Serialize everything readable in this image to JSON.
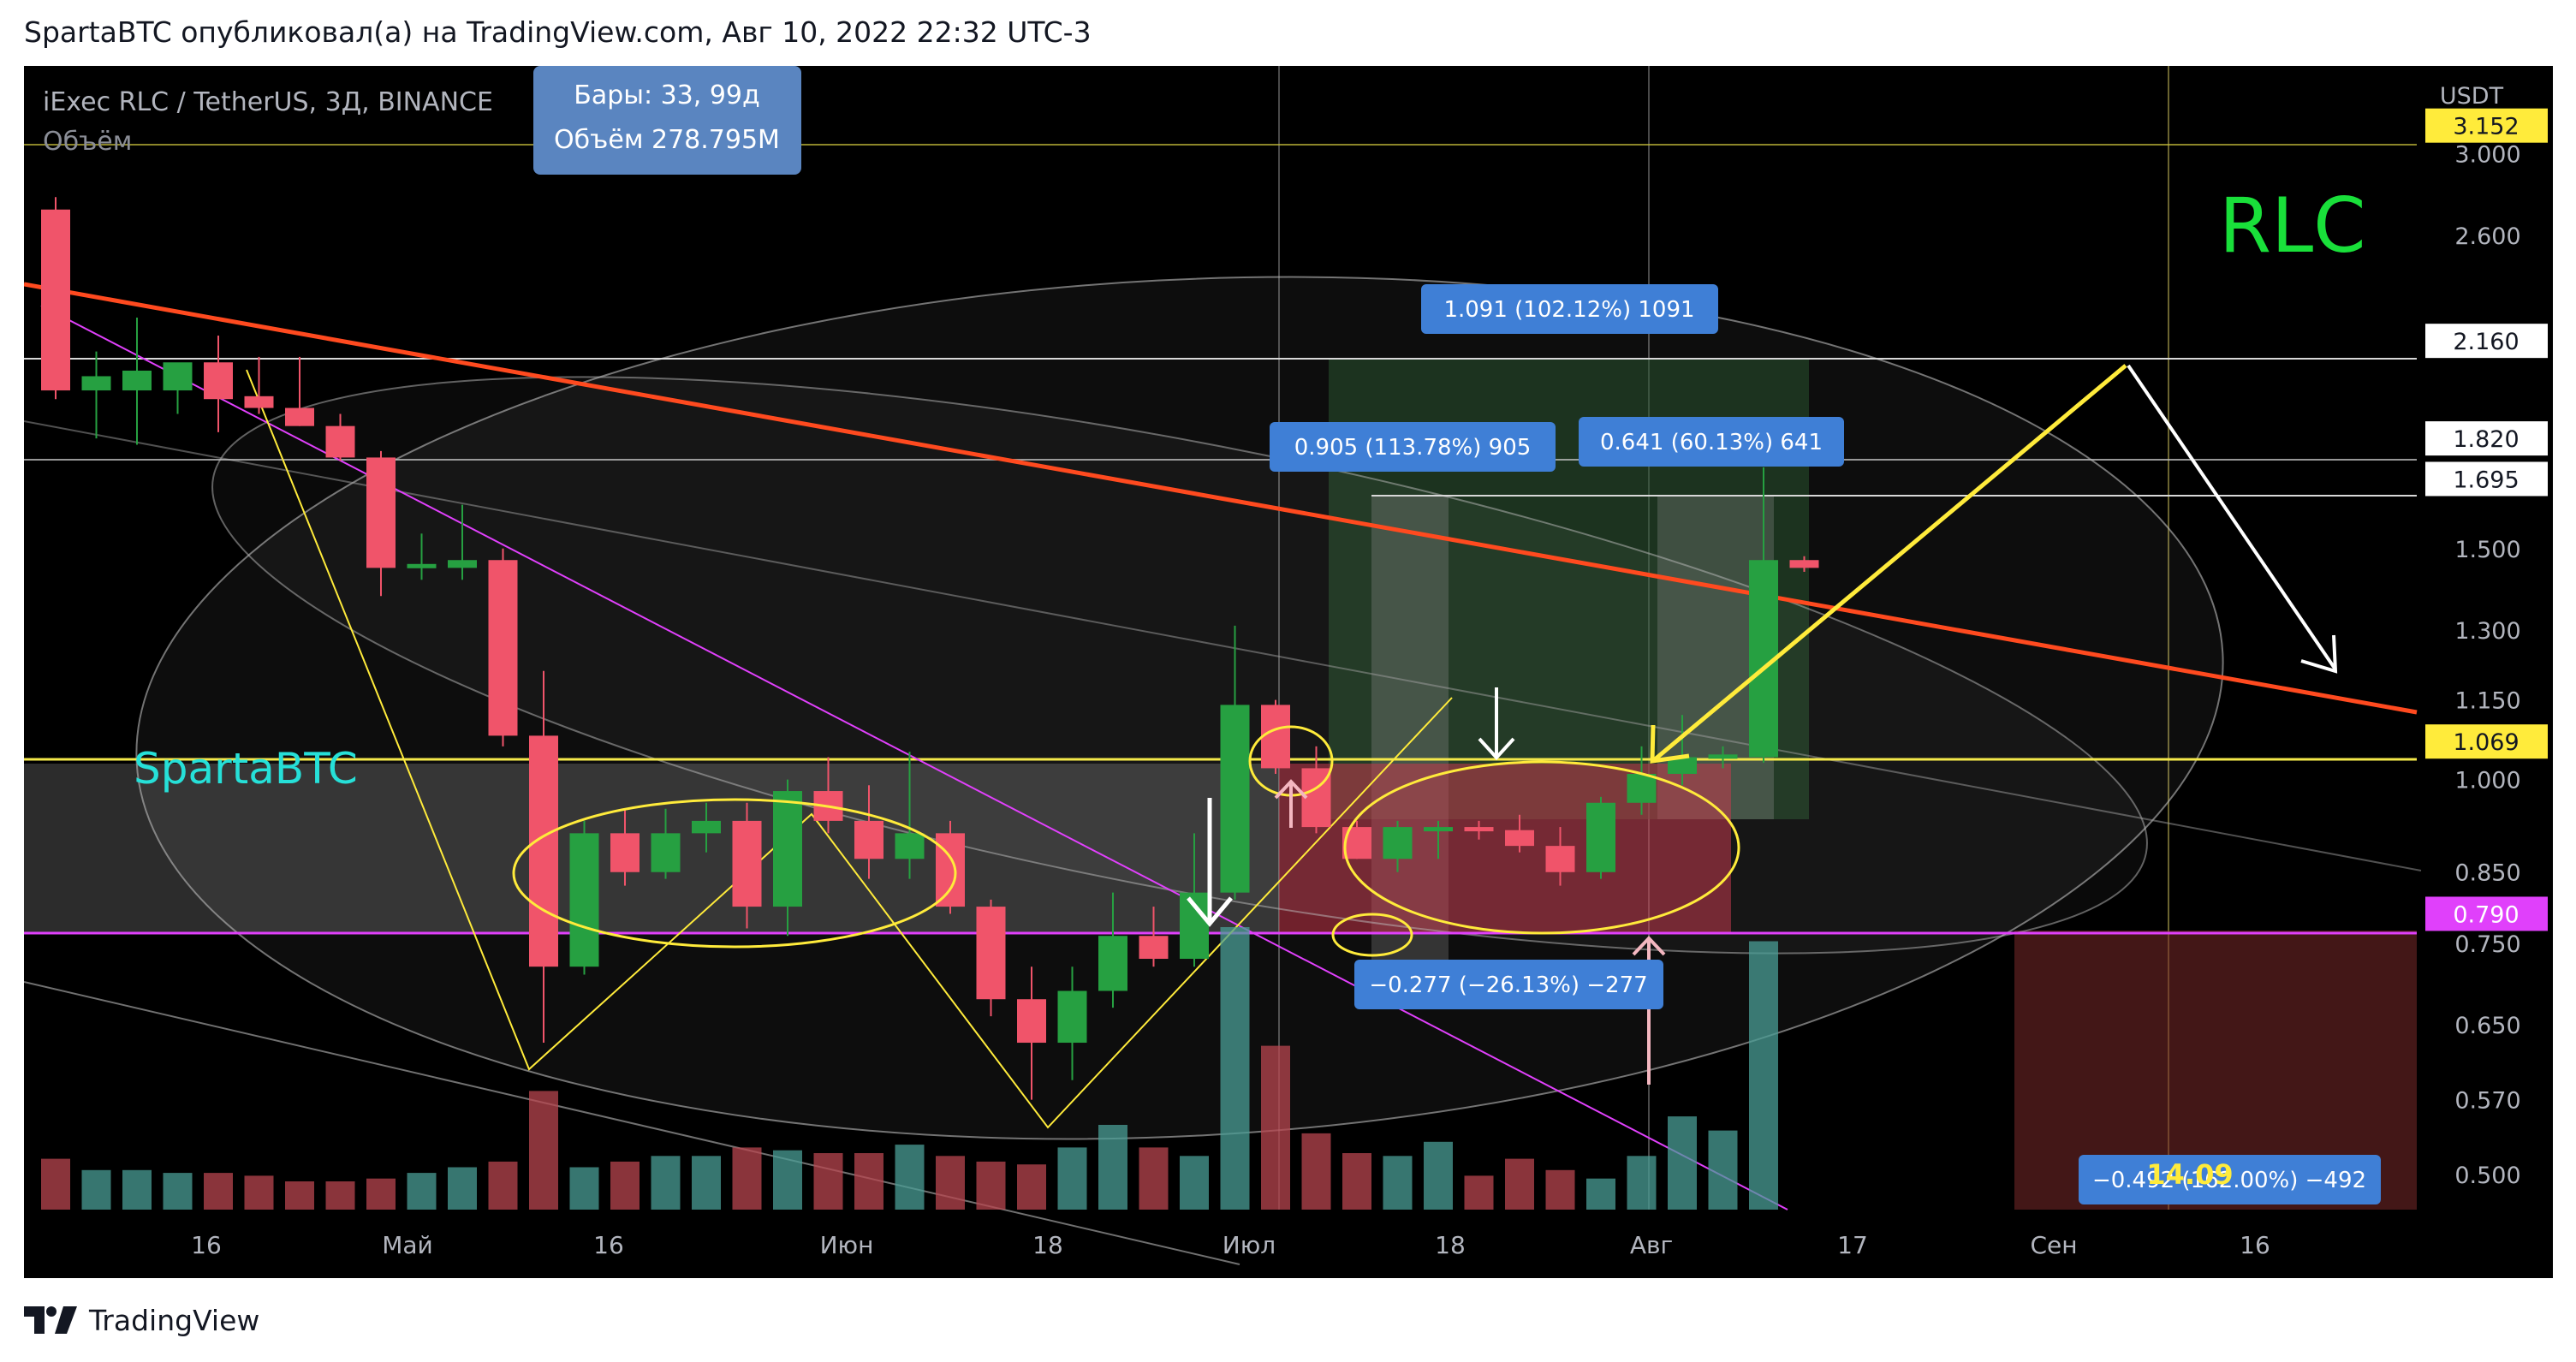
{
  "header": {
    "publication_line": "SpartaBTC опубликовал(а) на TradingView.com, Авг 10, 2022 22:32 UTC-3"
  },
  "legend": {
    "symbol_line": "iExec RLC / TetherUS, 3Д, BINANCE",
    "volume_label": "Объём"
  },
  "bar_stats": {
    "bars": "Бары: 33, 99д",
    "volume": "Объём 278.795M"
  },
  "colors": {
    "up": "#26a69a",
    "up_bright": "#1fa33a",
    "down": "#f0546a",
    "trendline": "#ff4a1f",
    "yellow": "#ffeb3b",
    "magenta": "#e040fb",
    "label_blue": "#3f7fd6"
  },
  "chart_data": {
    "type": "candlestick",
    "title": "",
    "currency": "USDT",
    "y_scale": "log",
    "ylim": [
      0.47,
      3.5
    ],
    "y_ticks": [
      "3.000",
      "2.600",
      "2.160",
      "1.820",
      "1.695",
      "1.500",
      "1.300",
      "1.150",
      "1.069",
      "1.000",
      "0.850",
      "0.790",
      "0.750",
      "0.650",
      "0.570",
      "0.500"
    ],
    "x_tick_labels": [
      "16",
      "Май",
      "16",
      "Июн",
      "18",
      "Июл",
      "18",
      "Авг",
      "17",
      "Сен",
      "16"
    ],
    "price_tags": [
      {
        "price": "3.152",
        "style": "yellow"
      },
      {
        "price": "2.160",
        "style": "white"
      },
      {
        "price": "1.820",
        "style": "white"
      },
      {
        "price": "1.695",
        "style": "white"
      },
      {
        "price": "1.069",
        "style": "yellow"
      },
      {
        "price": "0.790",
        "style": "magenta"
      }
    ],
    "candles": [
      {
        "o": 2.72,
        "h": 2.78,
        "l": 1.95,
        "c": 1.98
      },
      {
        "o": 1.98,
        "h": 2.12,
        "l": 1.82,
        "c": 2.03
      },
      {
        "o": 1.98,
        "h": 2.25,
        "l": 1.8,
        "c": 2.05
      },
      {
        "o": 1.98,
        "h": 2.07,
        "l": 1.9,
        "c": 2.08
      },
      {
        "o": 2.08,
        "h": 2.18,
        "l": 1.84,
        "c": 1.95
      },
      {
        "o": 1.96,
        "h": 2.1,
        "l": 1.9,
        "c": 1.92
      },
      {
        "o": 1.92,
        "h": 2.1,
        "l": 1.86,
        "c": 1.86
      },
      {
        "o": 1.86,
        "h": 1.9,
        "l": 1.75,
        "c": 1.76
      },
      {
        "o": 1.76,
        "h": 1.78,
        "l": 1.38,
        "c": 1.45
      },
      {
        "o": 1.45,
        "h": 1.54,
        "l": 1.42,
        "c": 1.46
      },
      {
        "o": 1.45,
        "h": 1.62,
        "l": 1.42,
        "c": 1.47
      },
      {
        "o": 1.47,
        "h": 1.5,
        "l": 1.06,
        "c": 1.08
      },
      {
        "o": 1.08,
        "h": 1.21,
        "l": 0.63,
        "c": 0.72
      },
      {
        "o": 0.72,
        "h": 0.93,
        "l": 0.71,
        "c": 0.91
      },
      {
        "o": 0.91,
        "h": 0.95,
        "l": 0.83,
        "c": 0.85
      },
      {
        "o": 0.85,
        "h": 0.95,
        "l": 0.84,
        "c": 0.91
      },
      {
        "o": 0.91,
        "h": 0.96,
        "l": 0.88,
        "c": 0.93
      },
      {
        "o": 0.93,
        "h": 0.96,
        "l": 0.77,
        "c": 0.8
      },
      {
        "o": 0.8,
        "h": 1.0,
        "l": 0.76,
        "c": 0.98
      },
      {
        "o": 0.98,
        "h": 1.04,
        "l": 0.91,
        "c": 0.93
      },
      {
        "o": 0.93,
        "h": 0.99,
        "l": 0.84,
        "c": 0.87
      },
      {
        "o": 0.87,
        "h": 1.05,
        "l": 0.84,
        "c": 0.91
      },
      {
        "o": 0.91,
        "h": 0.93,
        "l": 0.79,
        "c": 0.8
      },
      {
        "o": 0.8,
        "h": 0.81,
        "l": 0.66,
        "c": 0.68
      },
      {
        "o": 0.68,
        "h": 0.72,
        "l": 0.57,
        "c": 0.63
      },
      {
        "o": 0.63,
        "h": 0.72,
        "l": 0.59,
        "c": 0.69
      },
      {
        "o": 0.69,
        "h": 0.82,
        "l": 0.67,
        "c": 0.76
      },
      {
        "o": 0.76,
        "h": 0.8,
        "l": 0.72,
        "c": 0.73
      },
      {
        "o": 0.73,
        "h": 0.91,
        "l": 0.72,
        "c": 0.82
      },
      {
        "o": 0.82,
        "h": 1.31,
        "l": 0.81,
        "c": 1.14
      },
      {
        "o": 1.14,
        "h": 1.15,
        "l": 1.01,
        "c": 1.02
      },
      {
        "o": 1.02,
        "h": 1.06,
        "l": 0.91,
        "c": 0.92
      },
      {
        "o": 0.92,
        "h": 0.93,
        "l": 0.87,
        "c": 0.87
      },
      {
        "o": 0.87,
        "h": 0.93,
        "l": 0.85,
        "c": 0.92
      },
      {
        "o": 0.92,
        "h": 0.93,
        "l": 0.87,
        "c": 0.92
      },
      {
        "o": 0.92,
        "h": 0.93,
        "l": 0.9,
        "c": 0.915
      },
      {
        "o": 0.915,
        "h": 0.94,
        "l": 0.88,
        "c": 0.89
      },
      {
        "o": 0.89,
        "h": 0.92,
        "l": 0.83,
        "c": 0.85
      },
      {
        "o": 0.85,
        "h": 0.97,
        "l": 0.84,
        "c": 0.96
      },
      {
        "o": 0.96,
        "h": 1.06,
        "l": 0.94,
        "c": 1.01
      },
      {
        "o": 1.01,
        "h": 1.12,
        "l": 0.99,
        "c": 1.04
      },
      {
        "o": 1.04,
        "h": 1.06,
        "l": 1.02,
        "c": 1.045
      },
      {
        "o": 1.04,
        "h": 1.73,
        "l": 1.03,
        "c": 1.47
      },
      {
        "o": 1.47,
        "h": 1.48,
        "l": 1.44,
        "c": 1.45
      }
    ],
    "volume": [
      0.18,
      0.14,
      0.14,
      0.13,
      0.13,
      0.12,
      0.1,
      0.1,
      0.11,
      0.13,
      0.15,
      0.17,
      0.42,
      0.15,
      0.17,
      0.19,
      0.19,
      0.22,
      0.21,
      0.2,
      0.2,
      0.23,
      0.19,
      0.17,
      0.16,
      0.22,
      0.3,
      0.22,
      0.19,
      1.0,
      0.58,
      0.27,
      0.2,
      0.19,
      0.24,
      0.12,
      0.18,
      0.14,
      0.11,
      0.19,
      0.33,
      0.28,
      0.95,
      0.0
    ],
    "annotations": {
      "watermark": "SpartaBTC",
      "ticker_mark": "RLC",
      "measure_labels": [
        "1.091 (102.12%) 1091",
        "0.905 (113.78%) 905",
        "0.641 (60.13%) 641",
        "−0.277 (−26.13%) −277",
        "−0.492 (162.00%) −492"
      ],
      "overlay_number": "14.09"
    }
  },
  "footer": {
    "brand": "TradingView"
  }
}
